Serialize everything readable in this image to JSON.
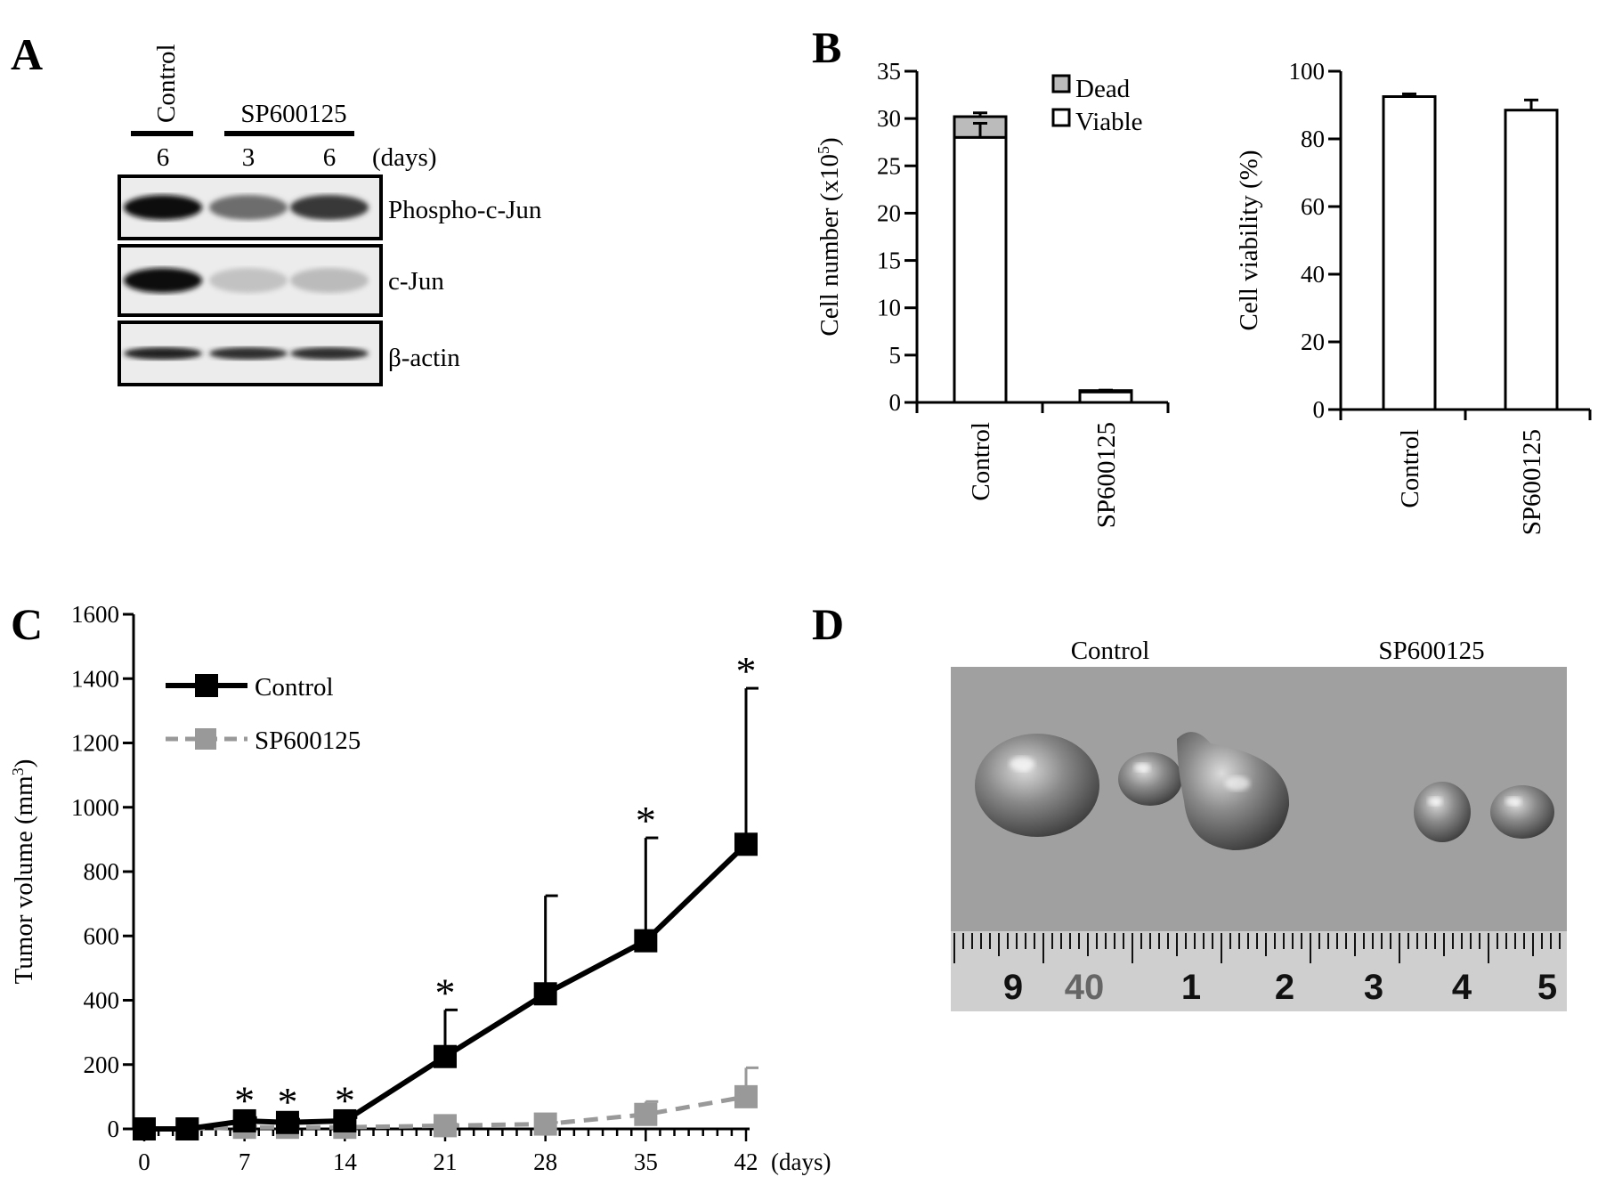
{
  "panels": {
    "a": "A",
    "b": "B",
    "c": "C",
    "d": "D"
  },
  "western_blot": {
    "lane_control": "Control",
    "treatment": "SP600125",
    "lane_days": [
      "6",
      "3",
      "6"
    ],
    "days_unit": "(days)",
    "rows": [
      {
        "label": "Phospho-c-Jun",
        "intensity": [
          1.0,
          0.55,
          0.8
        ]
      },
      {
        "label": "c-Jun",
        "intensity": [
          1.0,
          0.15,
          0.18
        ]
      },
      {
        "label": "β-actin",
        "intensity": [
          0.9,
          0.85,
          0.85
        ]
      }
    ]
  },
  "colors": {
    "control_series": "#000000",
    "sp_series": "#999999",
    "dead_fill": "#bbbbbb",
    "viable_fill": "#ffffff"
  },
  "chart_data": [
    {
      "type": "bar",
      "stacked": true,
      "ylabel": "Cell number (x10",
      "ylabel_sup": "5",
      "ylabel_end": ")",
      "ylim": [
        0,
        35
      ],
      "yticks": [
        "0",
        "5",
        "10",
        "15",
        "20",
        "25",
        "30",
        "35"
      ],
      "categories": [
        "Control",
        "SP600125"
      ],
      "legend": [
        "Dead",
        "Viable"
      ],
      "legend_position": "top-right",
      "series": [
        {
          "name": "Viable",
          "values": [
            28.0,
            1.1
          ],
          "error": [
            1.5,
            0.1
          ]
        },
        {
          "name": "Dead",
          "values": [
            2.2,
            0.15
          ],
          "error": [
            0.4,
            0.05
          ]
        }
      ]
    },
    {
      "type": "bar",
      "ylabel": "Cell viability (%)",
      "ylim": [
        0,
        100
      ],
      "yticks": [
        "0",
        "20",
        "40",
        "60",
        "80",
        "100"
      ],
      "categories": [
        "Control",
        "SP600125"
      ],
      "values": [
        92.5,
        88.5
      ],
      "error": [
        0.8,
        3.0
      ]
    },
    {
      "type": "line",
      "ylabel": "Tumor volume (mm",
      "ylabel_sup": "3",
      "ylabel_end": ")",
      "xunit": "(days)",
      "xlim": [
        0,
        42
      ],
      "ylim": [
        0,
        1600
      ],
      "xticks": [
        "0",
        "7",
        "14",
        "21",
        "28",
        "35",
        "42"
      ],
      "yticks": [
        "0",
        "200",
        "400",
        "600",
        "800",
        "1000",
        "1200",
        "1400",
        "1600"
      ],
      "legend_position": "top-left",
      "significance_marker": "*",
      "significant_days": [
        7,
        10,
        14,
        21,
        35,
        42
      ],
      "series": [
        {
          "name": "Control",
          "x": [
            0,
            3,
            7,
            10,
            14,
            21,
            28,
            35,
            42
          ],
          "y": [
            0,
            0,
            25,
            20,
            25,
            225,
            420,
            585,
            885
          ],
          "error": [
            0,
            0,
            10,
            10,
            10,
            145,
            305,
            320,
            485
          ]
        },
        {
          "name": "SP600125",
          "x": [
            0,
            3,
            7,
            10,
            14,
            21,
            28,
            35,
            42
          ],
          "y": [
            0,
            0,
            5,
            5,
            5,
            10,
            15,
            45,
            100
          ],
          "error": [
            0,
            0,
            3,
            3,
            3,
            5,
            5,
            40,
            90
          ]
        }
      ]
    }
  ],
  "photo": {
    "label_control": "Control",
    "label_sp": "SP600125",
    "ruler_numbers": [
      "9",
      "40",
      "1",
      "2",
      "3",
      "4",
      "5"
    ]
  }
}
